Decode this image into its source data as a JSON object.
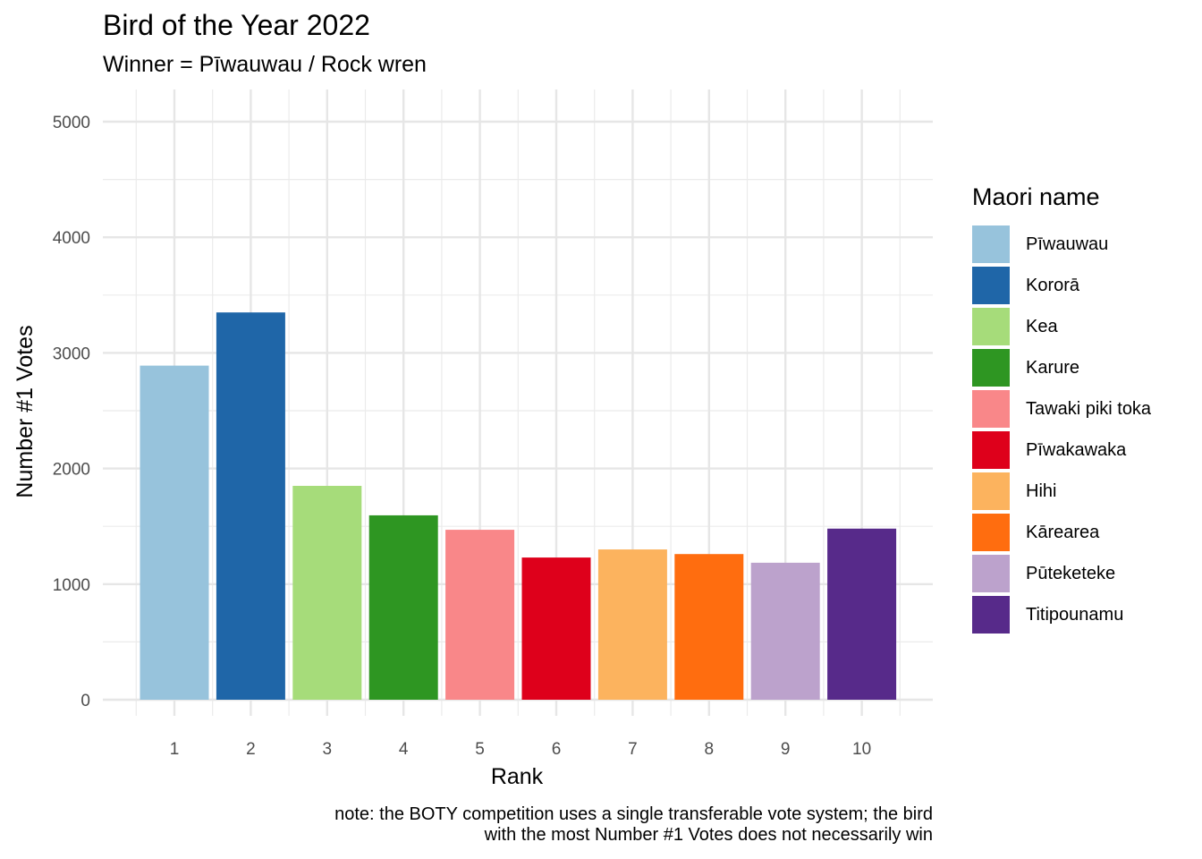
{
  "chart_data": {
    "type": "bar",
    "title": "Bird of the Year 2022",
    "subtitle": "Winner = Pīwauwau / Rock wren",
    "xlabel": "Rank",
    "ylabel": "Number #1 Votes",
    "categories": [
      "1",
      "2",
      "3",
      "4",
      "5",
      "6",
      "7",
      "8",
      "9",
      "10"
    ],
    "values": [
      2890,
      3350,
      1850,
      1595,
      1470,
      1230,
      1300,
      1260,
      1185,
      1480
    ],
    "bar_names": [
      "Pīwauwau",
      "Kororā",
      "Kea",
      "Karure",
      "Tawaki piki toka",
      "Pīwakawaka",
      "Hihi",
      "Kārearea",
      "Pūteketeke",
      "Titipounamu"
    ],
    "colors": [
      "#97c3dc",
      "#1f66a8",
      "#a6dc7a",
      "#2e9622",
      "#f98789",
      "#de001b",
      "#fcb35e",
      "#ff6d0f",
      "#bca2cc",
      "#572a8a"
    ],
    "ylim": [
      0,
      5000
    ],
    "yticks": [
      0,
      1000,
      2000,
      3000,
      4000,
      5000
    ],
    "grid": true,
    "legend": {
      "title": "Maori name",
      "placement": "right",
      "entries": [
        "Pīwauwau",
        "Kororā",
        "Kea",
        "Karure",
        "Tawaki piki toka",
        "Pīwakawaka",
        "Hihi",
        "Kārearea",
        "Pūteketeke",
        "Titipounamu"
      ]
    },
    "caption": [
      "note: the BOTY competition uses a single transferable vote system; the bird",
      "with the most Number #1 Votes does not necessarily win"
    ]
  }
}
